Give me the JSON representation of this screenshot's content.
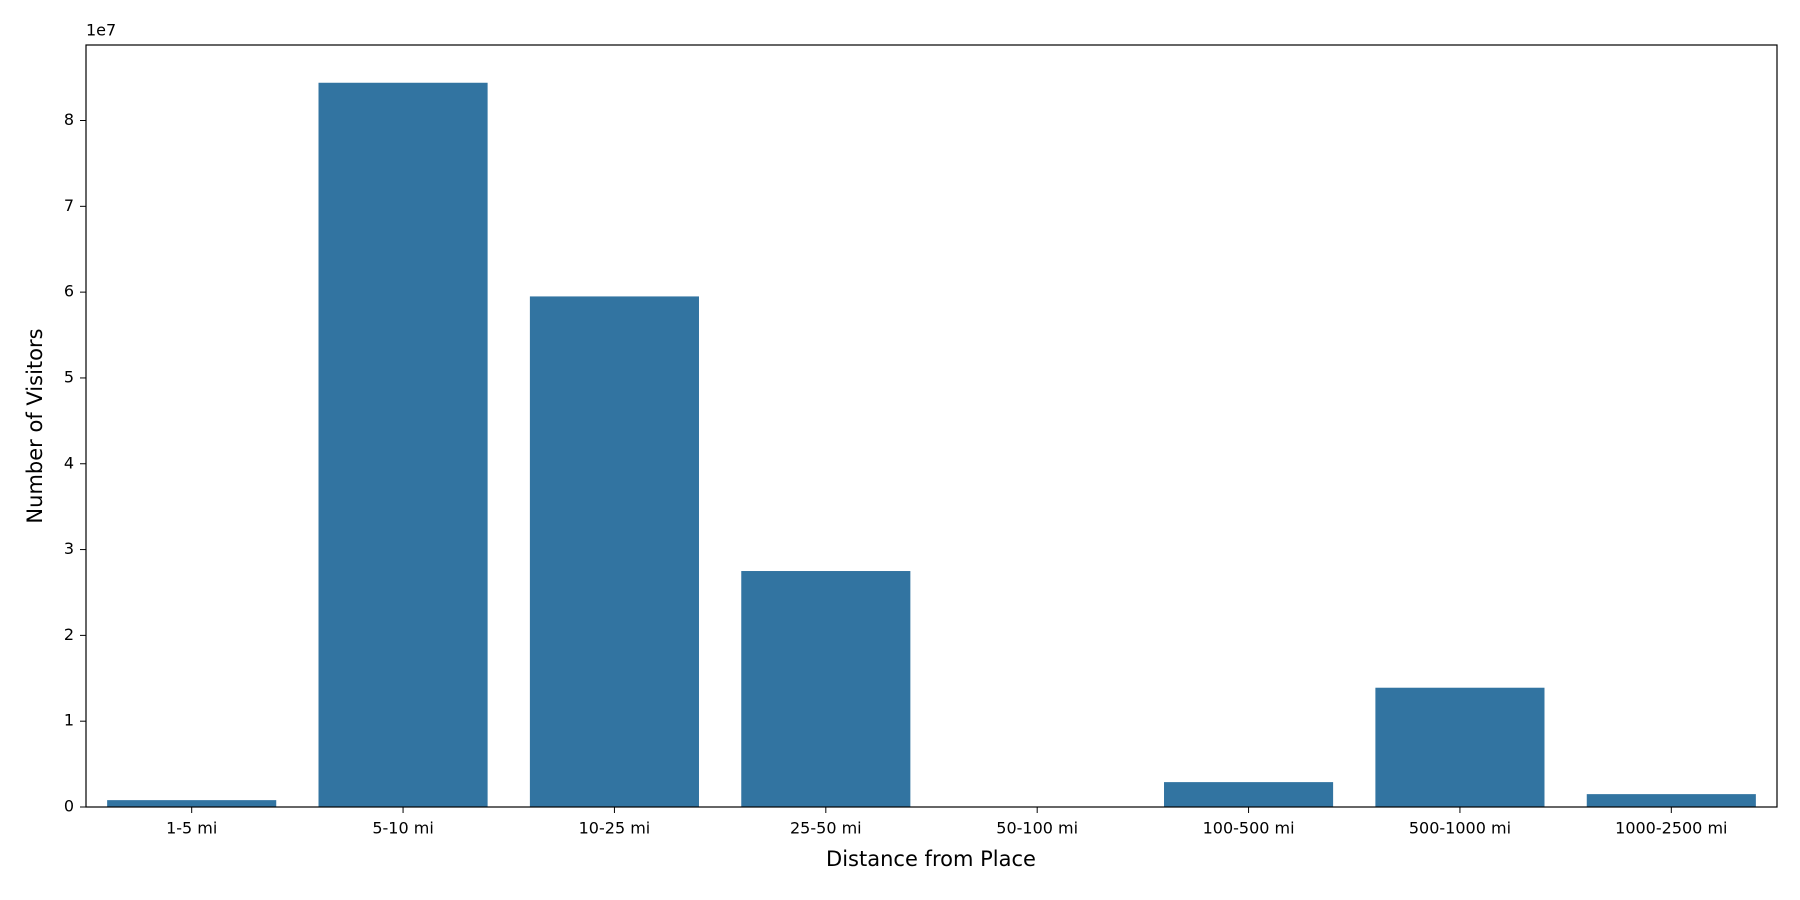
{
  "chart_data": {
    "type": "bar",
    "x_label": "Distance from Place",
    "y_label": "Number of Visitors",
    "y_offset_label": "1e7",
    "categories": [
      "1-5 mi",
      "5-10 mi",
      "10-25 mi",
      "25-50 mi",
      "50-100 mi",
      "100-500 mi",
      "500-1000 mi",
      "1000-2500 mi"
    ],
    "values": [
      800000,
      84400000,
      59500000,
      27500000,
      0,
      2900000,
      13900000,
      1500000
    ],
    "color": "#3274a1",
    "ylim": [
      0,
      88800000
    ],
    "yticks": [
      0,
      {
        "value": 10000000,
        "label": "1"
      },
      {
        "value": 20000000,
        "label": "2"
      },
      {
        "value": 30000000,
        "label": "3"
      },
      {
        "value": 40000000,
        "label": "4"
      },
      {
        "value": 50000000,
        "label": "5"
      },
      {
        "value": 60000000,
        "label": "6"
      },
      {
        "value": 70000000,
        "label": "7"
      },
      {
        "value": 80000000,
        "label": "8"
      }
    ],
    "grid": false
  }
}
